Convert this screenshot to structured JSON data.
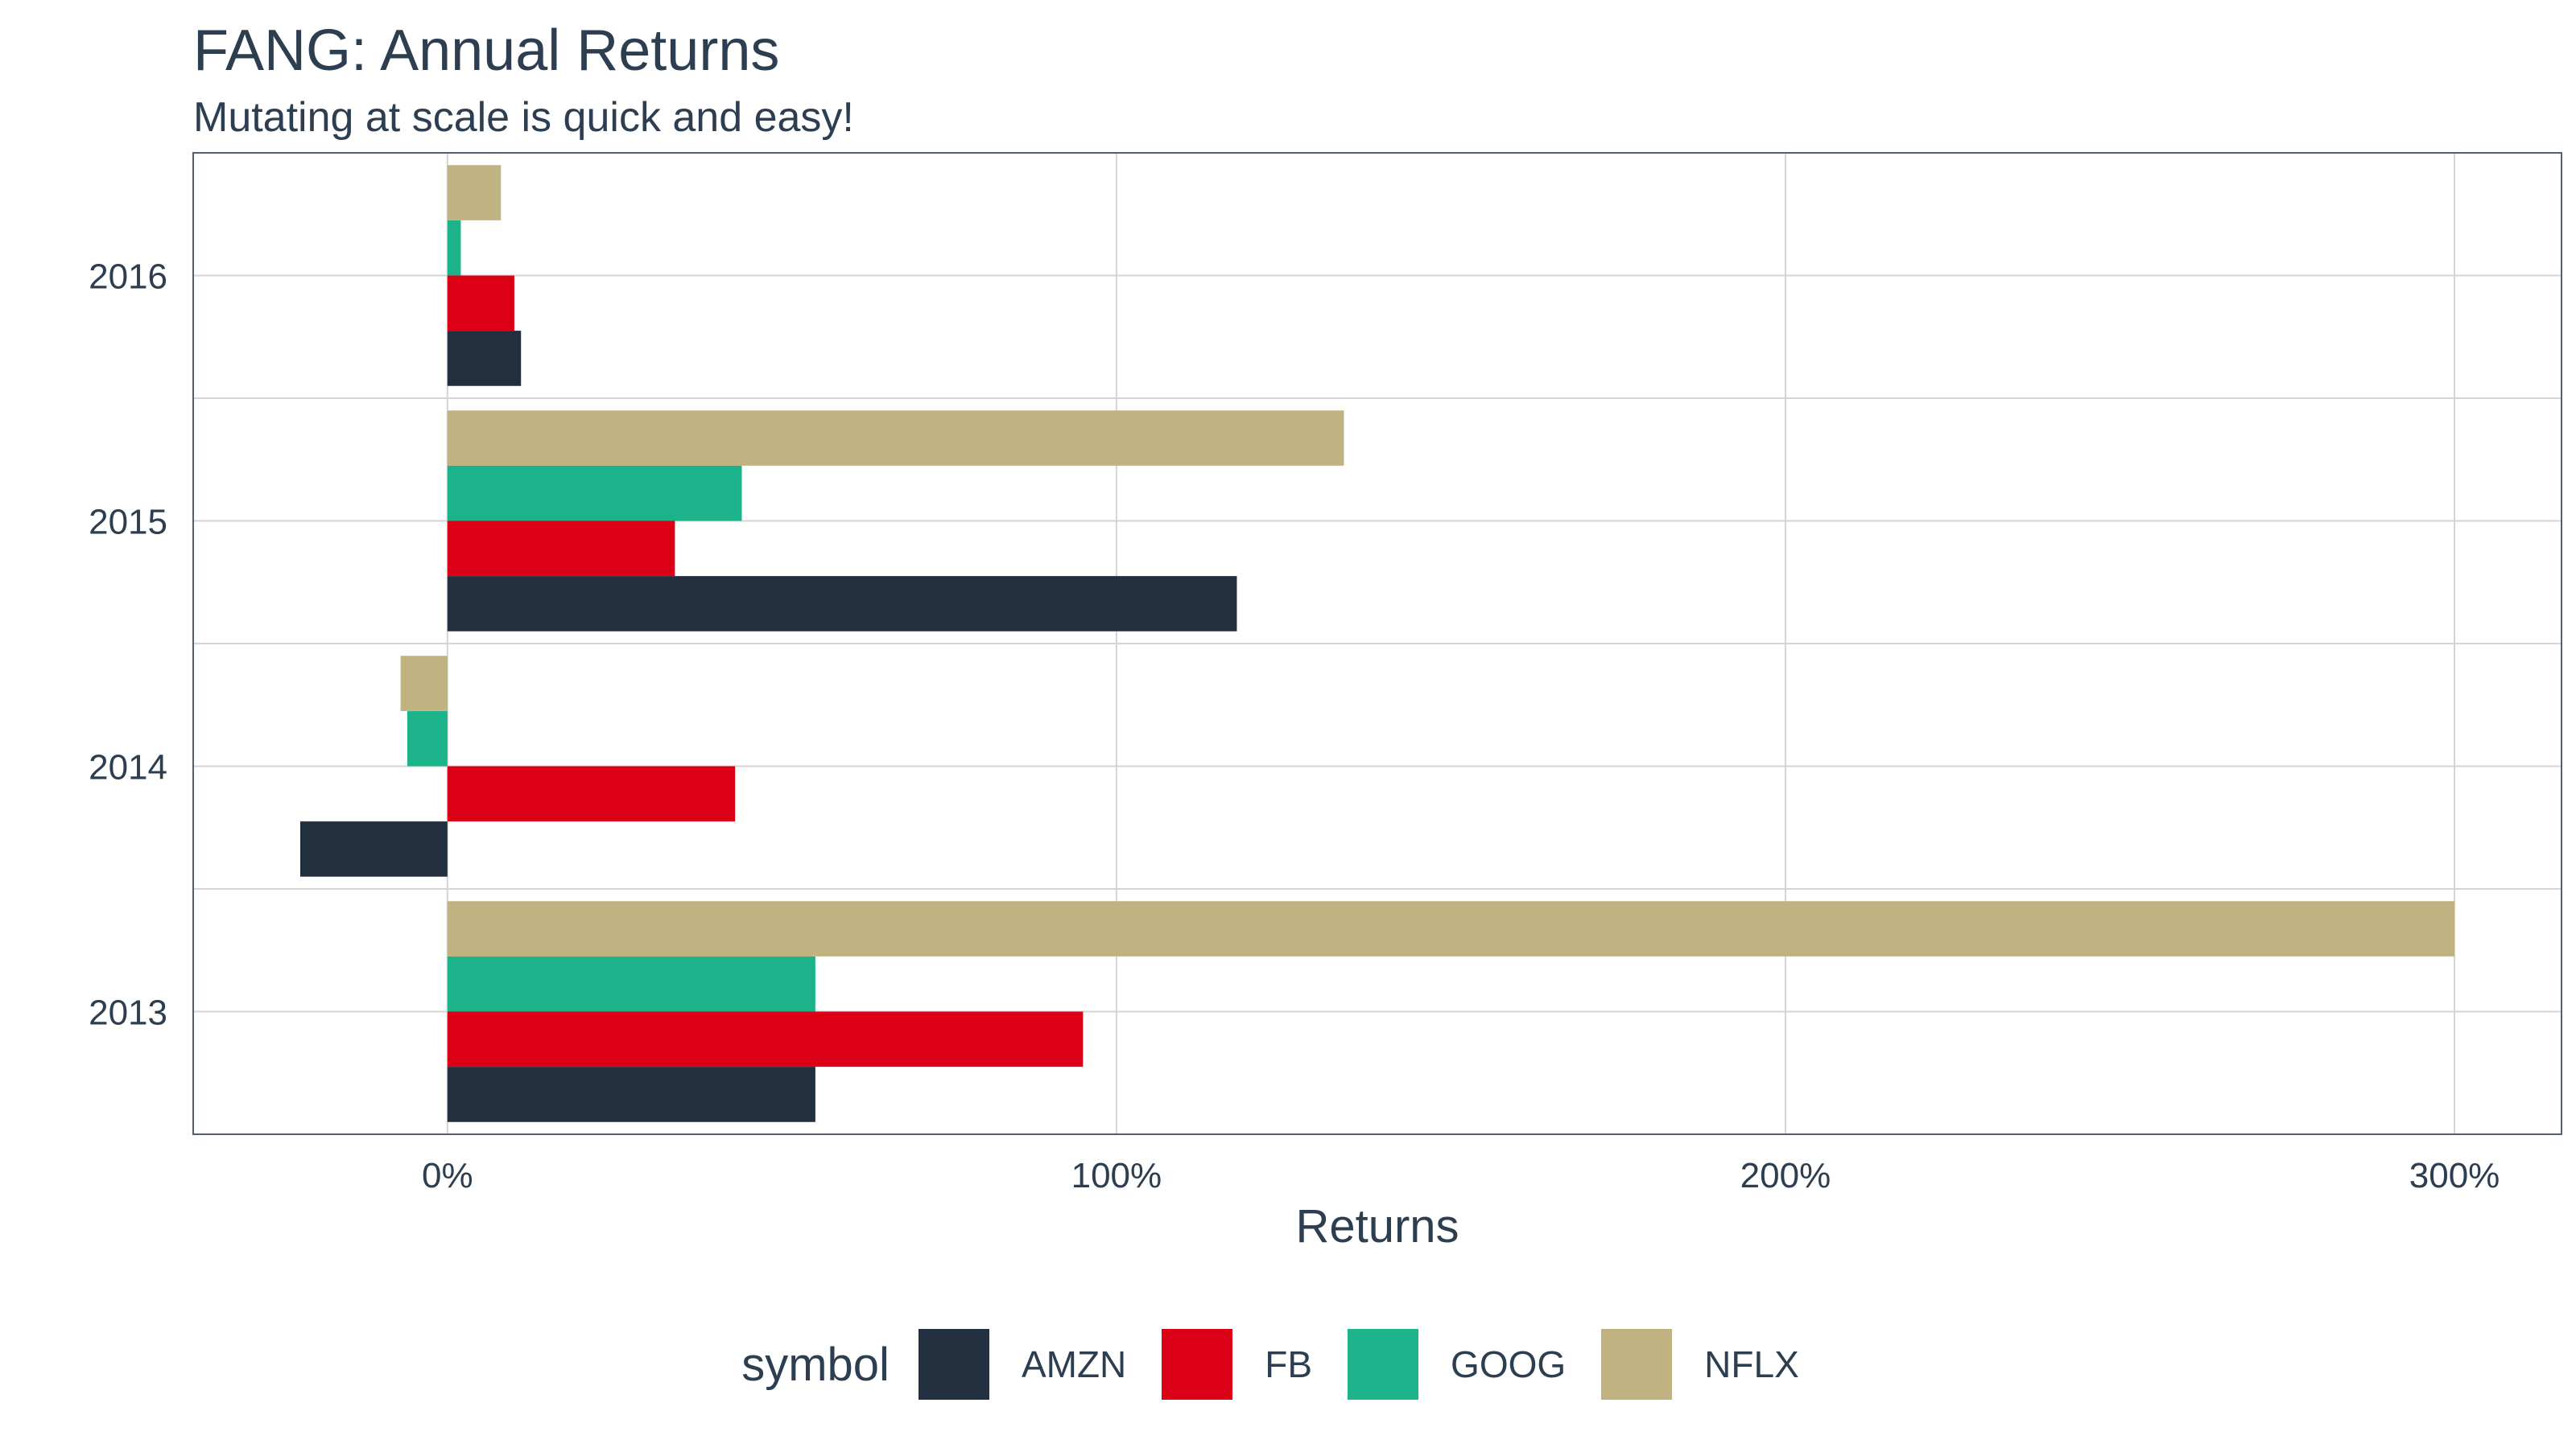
{
  "chart_data": {
    "type": "bar",
    "orientation": "horizontal",
    "title": "FANG: Annual Returns",
    "subtitle": "Mutating at scale is quick and easy!",
    "xlabel": "Returns",
    "ylabel": "",
    "categories": [
      "2013",
      "2014",
      "2015",
      "2016"
    ],
    "x_ticks": [
      "0%",
      "100%",
      "200%",
      "300%"
    ],
    "xlim": [
      -0.38,
      3.16
    ],
    "legend": {
      "title": "symbol",
      "position": "bottom"
    },
    "series": [
      {
        "name": "AMZN",
        "color": "#222f3e",
        "values": [
          0.55,
          -0.22,
          1.18,
          0.11
        ]
      },
      {
        "name": "FB",
        "color": "#dc0017",
        "values": [
          0.95,
          0.43,
          0.34,
          0.1
        ]
      },
      {
        "name": "GOOG",
        "color": "#1db38a",
        "values": [
          0.55,
          -0.06,
          0.44,
          0.02
        ]
      },
      {
        "name": "NFLX",
        "color": "#c0b281",
        "values": [
          3.0,
          -0.07,
          1.34,
          0.08
        ]
      }
    ],
    "grid": true
  }
}
